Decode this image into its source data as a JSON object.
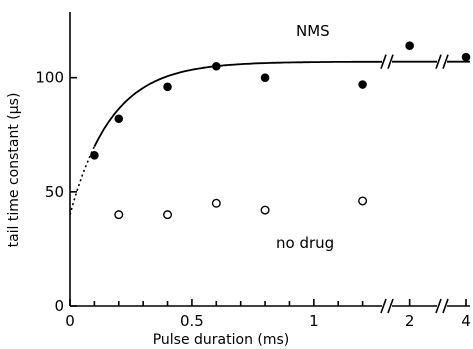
{
  "chart_data": {
    "type": "scatter",
    "xlabel": "Pulse duration (ms)",
    "ylabel": "tail time constant (μs)",
    "ylim": [
      0,
      120
    ],
    "y_ticks": [
      0,
      50,
      100
    ],
    "x_tick_labels": [
      "0",
      "0.5",
      "1",
      "2",
      "4"
    ],
    "x_minor_ticks": [
      0.1,
      0.2,
      0.3,
      0.4,
      0.6,
      0.7,
      0.8,
      0.9,
      1.1,
      1.2
    ],
    "x_breaks": [
      1.3,
      3
    ],
    "grid": false,
    "series": [
      {
        "name": "NMS",
        "marker": "filled-circle",
        "points": [
          {
            "x": 0.1,
            "y": 66
          },
          {
            "x": 0.2,
            "y": 82
          },
          {
            "x": 0.4,
            "y": 96
          },
          {
            "x": 0.6,
            "y": 105
          },
          {
            "x": 0.8,
            "y": 100
          },
          {
            "x": 1.2,
            "y": 97
          },
          {
            "x": 2,
            "y": 114
          },
          {
            "x": 4,
            "y": 109
          }
        ]
      },
      {
        "name": "no drug",
        "marker": "open-circle",
        "points": [
          {
            "x": 0.2,
            "y": 40
          },
          {
            "x": 0.4,
            "y": 40
          },
          {
            "x": 0.6,
            "y": 45
          },
          {
            "x": 0.8,
            "y": 42
          },
          {
            "x": 1.2,
            "y": 46
          }
        ]
      }
    ],
    "fit_curve": {
      "series": "NMS",
      "form": "y0 + (ymax - y0) * (1 - exp(-x / tau))",
      "y0": 40,
      "ymax": 107,
      "tau_ms": 0.17,
      "solid_from_x": 0.1,
      "dotted_from_x": 0
    }
  }
}
